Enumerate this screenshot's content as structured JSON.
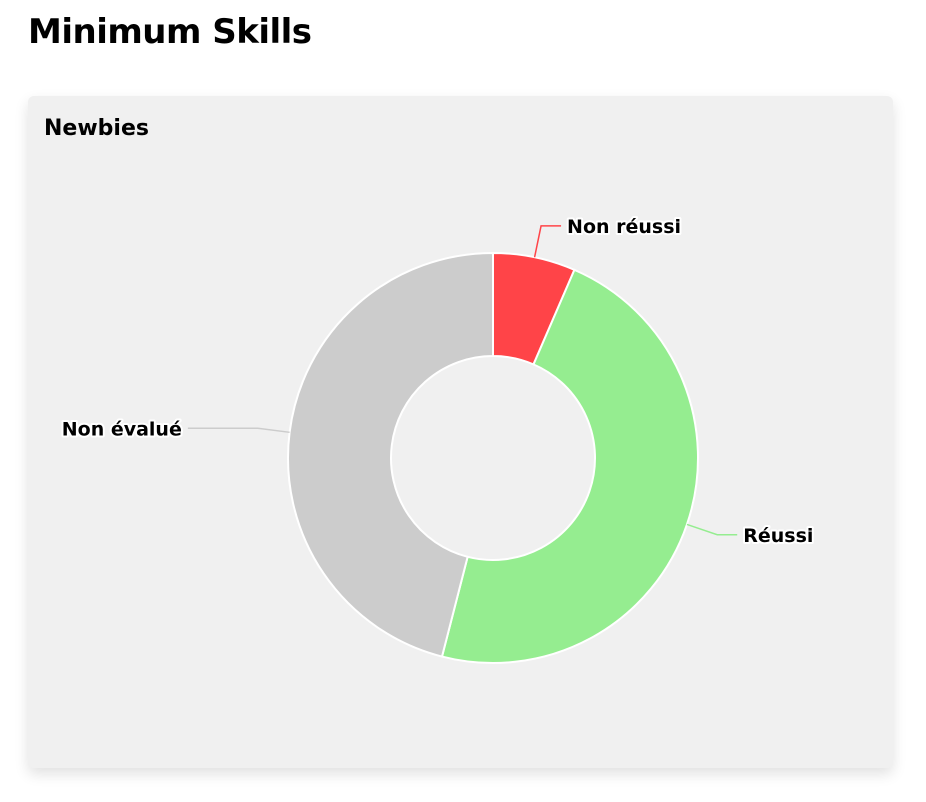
{
  "page": {
    "title": "Minimum Skills"
  },
  "card": {
    "title": "Newbies"
  },
  "chart_data": {
    "type": "pie",
    "title": "Newbies",
    "donut": true,
    "legend": "none",
    "slices": [
      {
        "label": "Non réussi",
        "value": 6.5,
        "color": "#ff4448"
      },
      {
        "label": "Réussi",
        "value": 47.5,
        "color": "#95ed90"
      },
      {
        "label": "Non évalué",
        "value": 46.0,
        "color": "#cccccc"
      }
    ]
  }
}
